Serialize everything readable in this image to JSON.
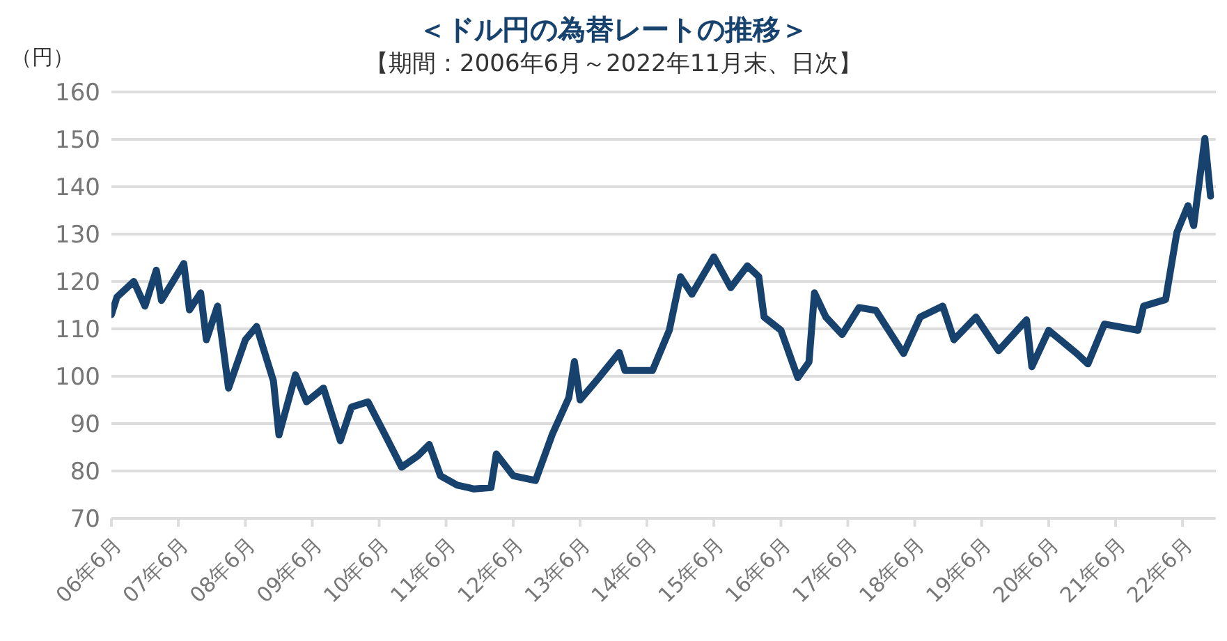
{
  "chart_data": {
    "type": "line",
    "title": "＜ドル円の為替レートの推移＞",
    "subtitle": "【期間：2006年6月～2022年11月末、日次】",
    "ylabel": "（円）",
    "x": [
      "2006-06",
      "2006-07",
      "2006-10",
      "2006-12",
      "2007-02",
      "2007-03",
      "2007-07",
      "2007-08",
      "2007-10",
      "2007-11",
      "2008-01",
      "2008-02",
      "2008-03",
      "2008-06",
      "2008-08",
      "2008-11",
      "2008-12",
      "2009-03",
      "2009-05",
      "2009-08",
      "2009-11",
      "2010-01",
      "2010-04",
      "2010-07",
      "2010-10",
      "2011-01",
      "2011-03",
      "2011-05",
      "2011-08",
      "2011-10",
      "2011-11",
      "2012-02",
      "2012-03",
      "2012-06",
      "2012-10",
      "2013-01",
      "2013-04",
      "2013-05",
      "2013-06",
      "2013-09",
      "2014-01",
      "2014-02",
      "2014-07",
      "2014-10",
      "2014-12",
      "2015-02",
      "2015-06",
      "2015-09",
      "2015-12",
      "2016-02",
      "2016-03",
      "2016-06",
      "2016-09",
      "2016-11",
      "2016-12",
      "2017-02",
      "2017-05",
      "2017-08",
      "2017-11",
      "2018-04",
      "2018-07",
      "2018-11",
      "2019-01",
      "2019-05",
      "2019-09",
      "2020-02",
      "2020-03",
      "2020-06",
      "2020-11",
      "2021-01",
      "2021-04",
      "2021-10",
      "2021-11",
      "2022-03",
      "2022-05",
      "2022-07",
      "2022-08",
      "2022-10",
      "2022-11"
    ],
    "series": [
      {
        "color": "#17426e",
        "values": [
          113,
          116.7,
          120,
          114.8,
          122.4,
          116,
          123.8,
          114,
          117.6,
          107.7,
          114.8,
          106,
          97.5,
          107.7,
          110.5,
          99,
          87.6,
          100.3,
          94.6,
          97.5,
          86.4,
          93.5,
          94.6,
          87.8,
          80.8,
          83.3,
          85.6,
          79,
          77,
          76.5,
          76.2,
          76.5,
          83.6,
          79,
          78,
          87.8,
          95.5,
          103.1,
          95,
          99.2,
          105,
          101.2,
          101.2,
          109.7,
          121,
          117.3,
          125.2,
          118.7,
          123.3,
          121,
          112.5,
          109.7,
          99.7,
          103,
          117.6,
          112.5,
          108.8,
          114.5,
          113.9,
          104.8,
          112.5,
          114.8,
          107.7,
          112.5,
          105.4,
          111.9,
          102,
          109.7,
          104.8,
          102.6,
          111,
          109.7,
          114.8,
          116.2,
          130.3,
          136,
          131.8,
          150.2,
          138
        ]
      }
    ],
    "xlim": [
      "2006-06",
      "2022-11-30"
    ],
    "xticks": [
      {
        "value": "2006-06",
        "label": "06年6月"
      },
      {
        "value": "2007-06",
        "label": "07年6月"
      },
      {
        "value": "2008-06",
        "label": "08年6月"
      },
      {
        "value": "2009-06",
        "label": "09年6月"
      },
      {
        "value": "2010-06",
        "label": "10年6月"
      },
      {
        "value": "2011-06",
        "label": "11年6月"
      },
      {
        "value": "2012-06",
        "label": "12年6月"
      },
      {
        "value": "2013-06",
        "label": "13年6月"
      },
      {
        "value": "2014-06",
        "label": "14年6月"
      },
      {
        "value": "2015-06",
        "label": "15年6月"
      },
      {
        "value": "2016-06",
        "label": "16年6月"
      },
      {
        "value": "2017-06",
        "label": "17年6月"
      },
      {
        "value": "2018-06",
        "label": "18年6月"
      },
      {
        "value": "2019-06",
        "label": "19年6月"
      },
      {
        "value": "2020-06",
        "label": "20年6月"
      },
      {
        "value": "2021-06",
        "label": "21年6月"
      },
      {
        "value": "2022-06",
        "label": "22年6月"
      }
    ],
    "ylim": [
      70,
      160
    ],
    "yticks": [
      70,
      80,
      90,
      100,
      110,
      120,
      130,
      140,
      150,
      160
    ],
    "grid": "y",
    "legend": false,
    "marker": "none",
    "line_style": "solid"
  }
}
